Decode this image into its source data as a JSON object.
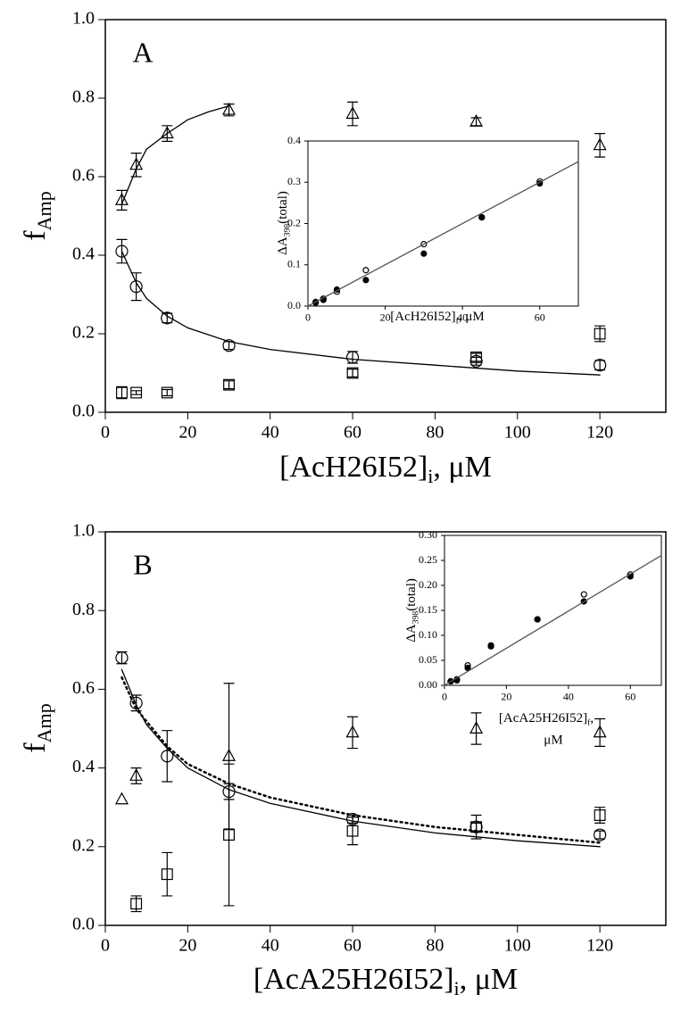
{
  "chart_data": [
    {
      "type": "scatter",
      "panel_label": "A",
      "x_label": [
        "[AcH26I52]",
        "i",
        ", μM"
      ],
      "y_label": [
        "f",
        "Amp"
      ],
      "xlim": [
        0,
        136
      ],
      "xticks": [
        0,
        20,
        40,
        60,
        80,
        100,
        120
      ],
      "ylim": [
        0,
        1
      ],
      "yticks": [
        {
          "value": 0,
          "label": "0.0"
        },
        0.2,
        0.4,
        0.6,
        0.8,
        {
          "value": 1,
          "label": "1.0"
        }
      ],
      "series": [
        {
          "marker": "triangle",
          "color": "#000000",
          "x": [
            4,
            7.5,
            15,
            30,
            60,
            90,
            120
          ],
          "values": [
            0.54,
            0.63,
            0.71,
            0.77,
            0.76,
            0.74,
            0.68
          ],
          "errors": [
            0.025,
            0.03,
            0.02,
            0.015,
            0.03,
            0.01,
            0.03
          ]
        },
        {
          "marker": "circle",
          "color": "#000000",
          "x": [
            4,
            7.5,
            15,
            30,
            60,
            90,
            120
          ],
          "values": [
            0.41,
            0.32,
            0.24,
            0.17,
            0.14,
            0.13,
            0.12
          ],
          "errors": [
            0.03,
            0.035,
            0.012,
            0.01,
            0.015,
            0.01,
            0.012
          ]
        },
        {
          "marker": "square",
          "color": "#000000",
          "x": [
            4,
            7.5,
            15,
            30,
            60,
            90,
            120
          ],
          "values": [
            0.05,
            0.05,
            0.05,
            0.07,
            0.1,
            0.14,
            0.2
          ],
          "errors": [
            0.015,
            0.005,
            0.008,
            0.01,
            0.01,
            0.01,
            0.02
          ]
        },
        {
          "marker": "line",
          "style": "solid",
          "color": "#000000",
          "x": [
            4,
            7.5,
            10,
            15,
            20,
            25,
            30
          ],
          "values": [
            0.53,
            0.62,
            0.67,
            0.71,
            0.745,
            0.765,
            0.78
          ]
        },
        {
          "marker": "line",
          "style": "solid",
          "color": "#000000",
          "x": [
            4,
            7.5,
            10,
            15,
            20,
            30,
            40,
            60,
            80,
            100,
            120
          ],
          "values": [
            0.41,
            0.33,
            0.29,
            0.245,
            0.215,
            0.18,
            0.16,
            0.135,
            0.12,
            0.105,
            0.095
          ]
        }
      ]
    },
    {
      "type": "scatter",
      "x_label": [
        "[AcH26I52]",
        "f",
        ", μM"
      ],
      "y_label": [
        "ΔA",
        "398",
        "(total)"
      ],
      "xlim": [
        0,
        70
      ],
      "xticks": [
        0,
        20,
        40,
        60
      ],
      "ylim": [
        0,
        0.4
      ],
      "yticks": [
        {
          "value": 0,
          "label": "0.0"
        },
        0.1,
        0.2,
        0.3,
        0.4
      ],
      "series": [
        {
          "marker": "dot",
          "color": "#000000",
          "x": [
            2,
            4,
            7.5,
            15,
            30,
            45,
            60
          ],
          "values": [
            0.01,
            0.015,
            0.04,
            0.063,
            0.127,
            0.215,
            0.297
          ]
        },
        {
          "marker": "ring",
          "color": "#000000",
          "x": [
            2,
            4,
            7.5,
            15,
            30,
            45,
            60
          ],
          "values": [
            0.008,
            0.018,
            0.035,
            0.087,
            0.15,
            0.215,
            0.302
          ]
        },
        {
          "marker": "line",
          "style": "solid",
          "color": "#555555",
          "x": [
            0,
            70
          ],
          "values": [
            0,
            0.35
          ]
        }
      ]
    },
    {
      "type": "scatter",
      "panel_label": "B",
      "x_label": [
        "[AcA25H26I52]",
        "i",
        ", μM"
      ],
      "y_label": [
        "f",
        "Amp"
      ],
      "xlim": [
        0,
        136
      ],
      "xticks": [
        0,
        20,
        40,
        60,
        80,
        100,
        120
      ],
      "ylim": [
        0,
        1
      ],
      "yticks": [
        {
          "value": 0,
          "label": "0.0"
        },
        0.2,
        0.4,
        0.6,
        0.8,
        {
          "value": 1,
          "label": "1.0"
        }
      ],
      "series": [
        {
          "marker": "triangle",
          "color": "#000000",
          "x": [
            4,
            7.5,
            30,
            60,
            90,
            120
          ],
          "values": [
            0.32,
            0.38,
            0.43,
            0.49,
            0.5,
            0.49
          ],
          "errors": [
            null,
            0.02,
            0.185,
            0.04,
            0.04,
            0.035
          ]
        },
        {
          "marker": "circle",
          "color": "#000000",
          "x": [
            4,
            7.5,
            15,
            30,
            60,
            90,
            120
          ],
          "values": [
            0.68,
            0.565,
            0.43,
            0.34,
            0.27,
            0.25,
            0.23
          ],
          "errors": [
            0.015,
            0.02,
            0.065,
            0.02,
            0.01,
            0.01,
            0.01
          ]
        },
        {
          "marker": "square",
          "color": "#000000",
          "x": [
            7.5,
            15,
            30,
            60,
            90,
            120
          ],
          "values": [
            0.055,
            0.13,
            0.23,
            0.24,
            0.25,
            0.28
          ],
          "errors": [
            0.02,
            0.055,
            0.18,
            0.035,
            0.03,
            0.02
          ]
        },
        {
          "marker": "line",
          "style": "solid",
          "color": "#000000",
          "x": [
            4,
            7.5,
            10,
            15,
            20,
            30,
            40,
            60,
            80,
            100,
            120
          ],
          "values": [
            0.65,
            0.56,
            0.51,
            0.45,
            0.4,
            0.345,
            0.31,
            0.265,
            0.235,
            0.215,
            0.2
          ]
        },
        {
          "marker": "line",
          "style": "dotted",
          "color": "#000000",
          "x": [
            4,
            7.5,
            15,
            20,
            30,
            40,
            60,
            80,
            100,
            120
          ],
          "values": [
            0.63,
            0.55,
            0.455,
            0.41,
            0.36,
            0.325,
            0.28,
            0.25,
            0.23,
            0.21
          ]
        }
      ]
    },
    {
      "type": "scatter",
      "x_label": [
        "[AcA25H26I52]",
        "f",
        ",",
        "μM"
      ],
      "y_label": [
        "ΔA",
        "398",
        "(total)"
      ],
      "xlim": [
        0,
        70
      ],
      "xticks": [
        0,
        20,
        40,
        60
      ],
      "ylim": [
        0,
        0.3
      ],
      "yticks": [
        {
          "value": 0,
          "label": "0.00"
        },
        0.05,
        {
          "value": 0.1,
          "label": "0.10"
        },
        0.15,
        {
          "value": 0.2,
          "label": "0.20"
        },
        0.25,
        {
          "value": 0.3,
          "label": "0.30"
        }
      ],
      "series": [
        {
          "marker": "dot",
          "color": "#000000",
          "x": [
            2,
            4,
            7.5,
            15,
            30,
            45,
            60
          ],
          "values": [
            0.008,
            0.01,
            0.035,
            0.078,
            0.132,
            0.168,
            0.218
          ]
        },
        {
          "marker": "ring",
          "color": "#000000",
          "x": [
            2,
            4,
            7.5,
            15,
            30,
            45,
            60
          ],
          "values": [
            0.008,
            0.012,
            0.04,
            0.08,
            0.132,
            0.182,
            0.222
          ]
        },
        {
          "marker": "line",
          "style": "solid",
          "color": "#555555",
          "x": [
            0,
            70
          ],
          "values": [
            0,
            0.26
          ]
        }
      ]
    }
  ]
}
